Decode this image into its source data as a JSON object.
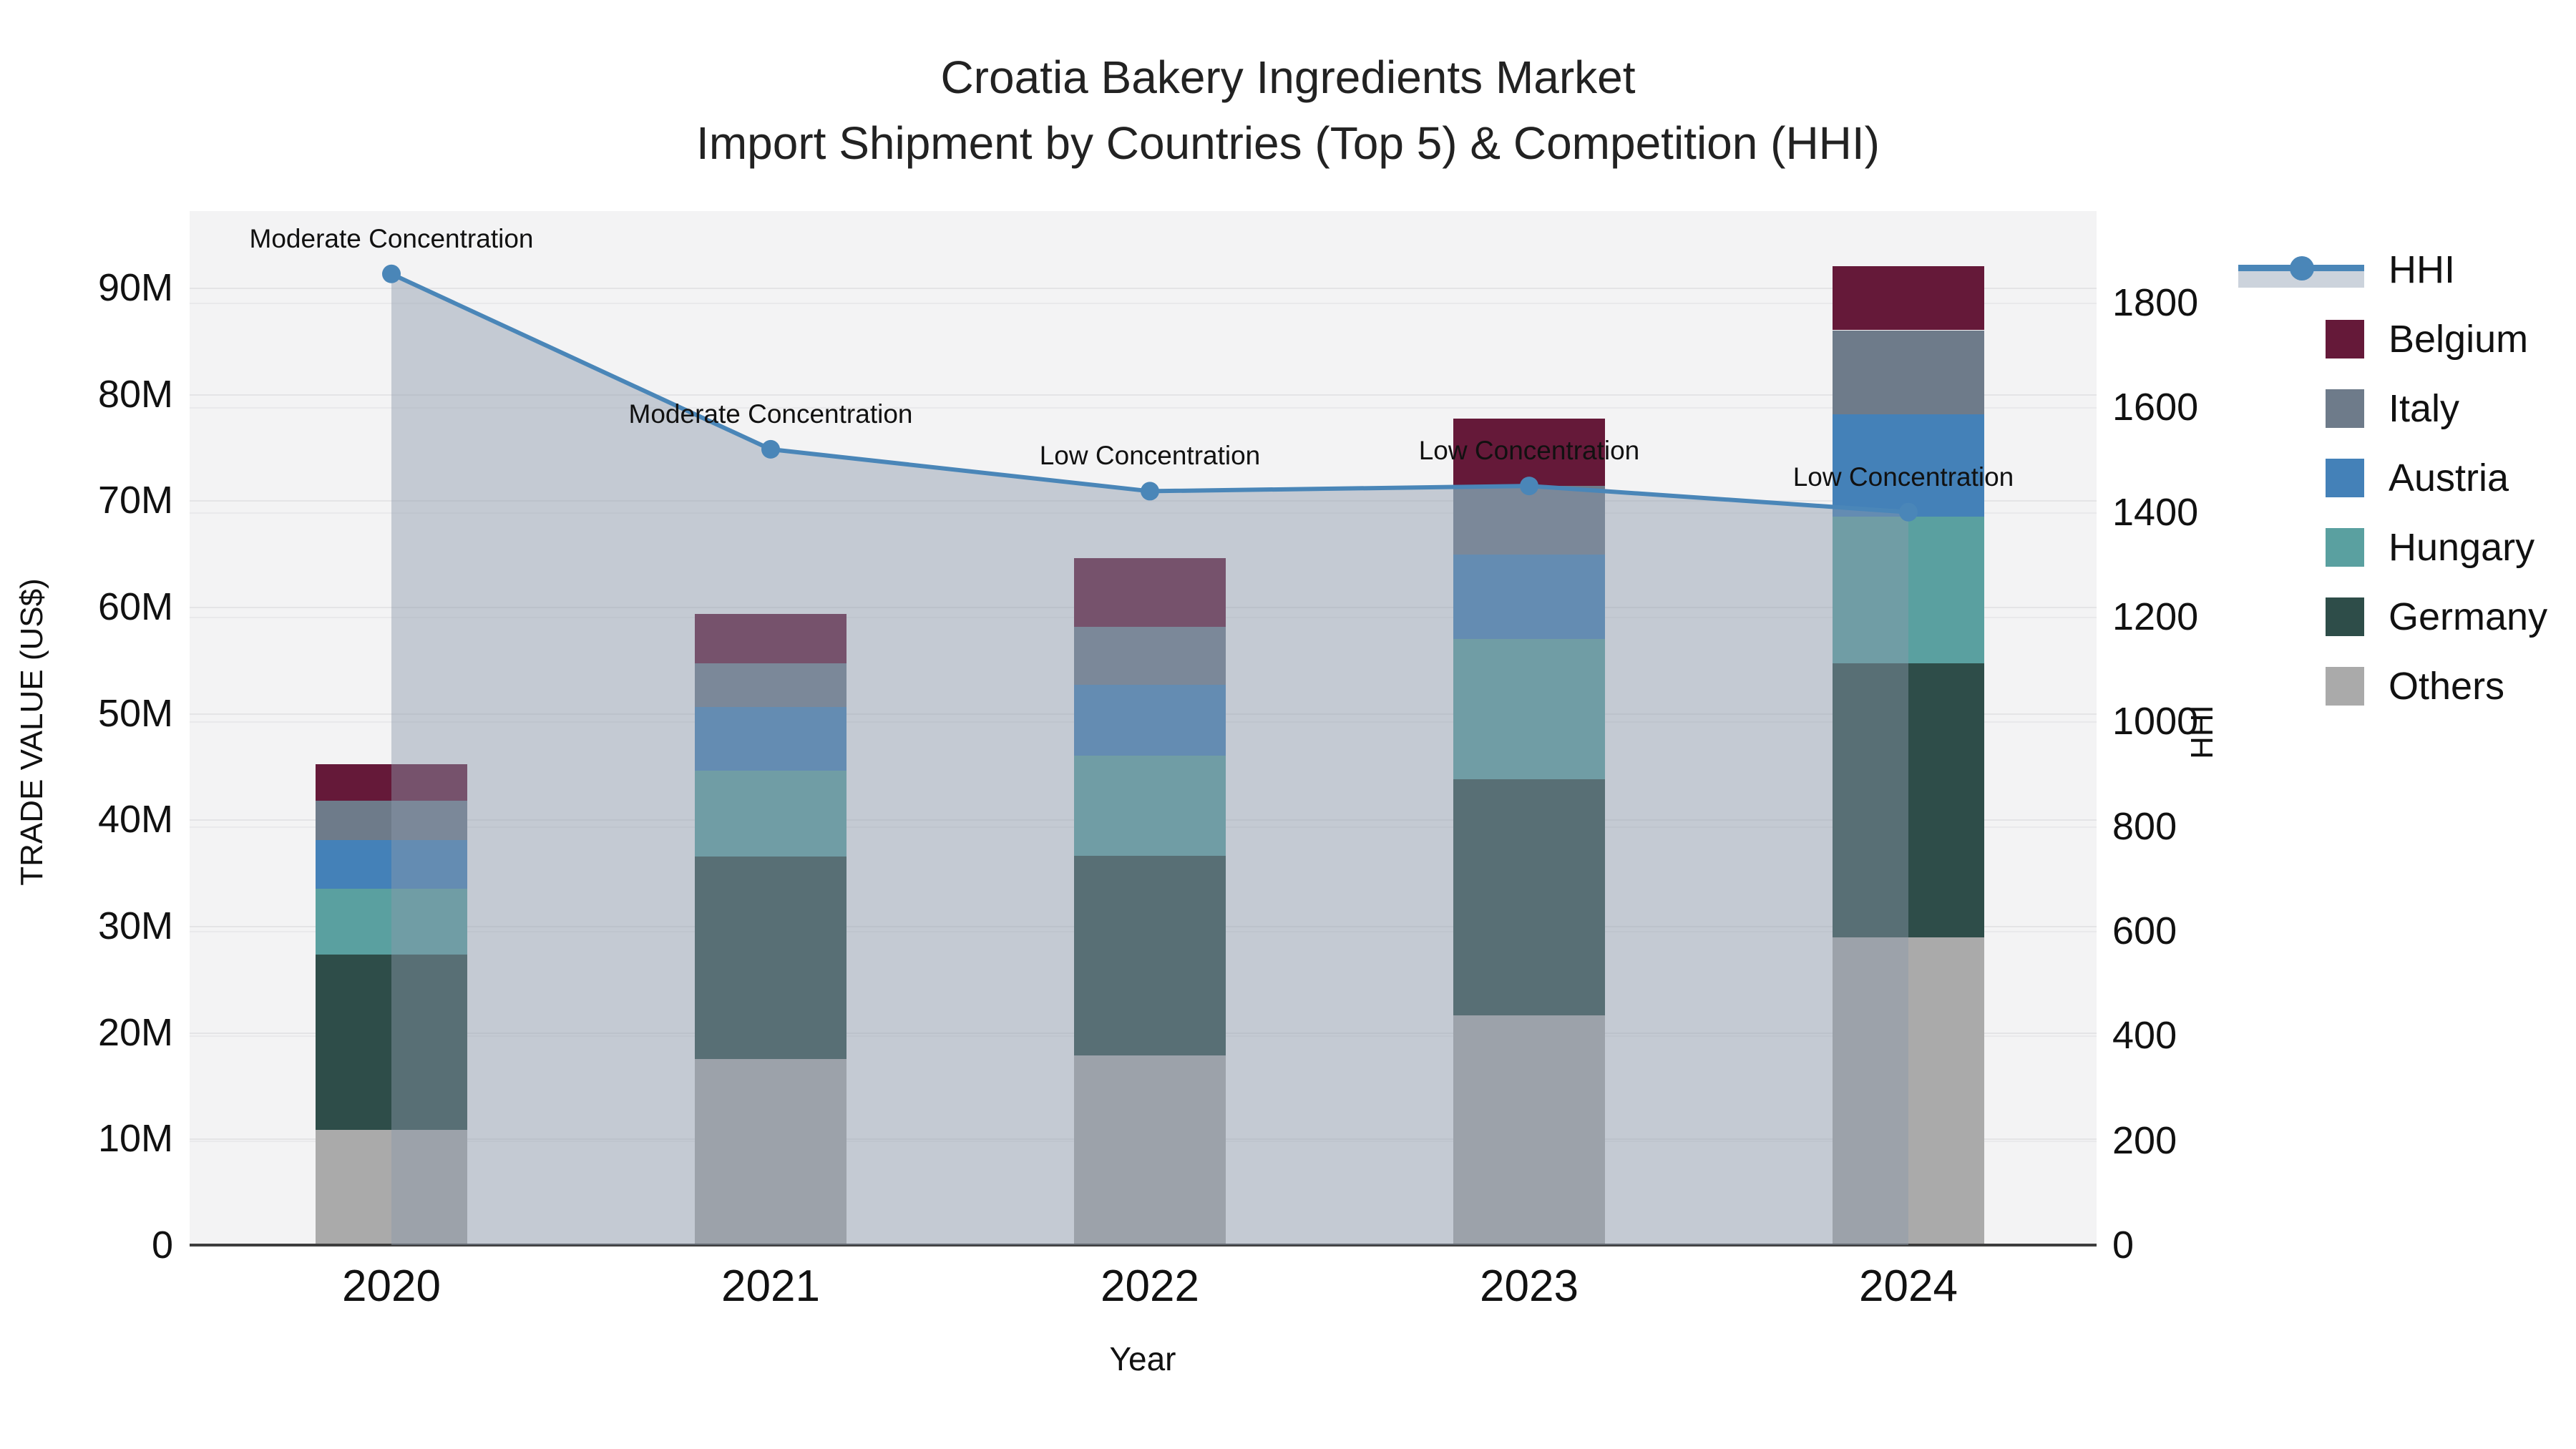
{
  "title": {
    "line1": "Croatia Bakery Ingredients Market",
    "line2": "Import Shipment by Countries (Top 5) & Competition (HHI)"
  },
  "axes": {
    "left": {
      "title": "TRADE VALUE (US$)",
      "tick_labels": [
        "0",
        "10M",
        "20M",
        "30M",
        "40M",
        "50M",
        "60M",
        "70M",
        "80M",
        "90M"
      ],
      "tick_values": [
        0,
        10,
        20,
        30,
        40,
        50,
        60,
        70,
        80,
        90
      ]
    },
    "right": {
      "title": "HHI",
      "tick_labels": [
        "0",
        "200",
        "400",
        "600",
        "800",
        "1000",
        "1200",
        "1400",
        "1600",
        "1800"
      ],
      "tick_values": [
        0,
        200,
        400,
        600,
        800,
        1000,
        1200,
        1400,
        1600,
        1800
      ]
    },
    "x": {
      "title": "Year"
    }
  },
  "legend": {
    "items": [
      {
        "label": "HHI",
        "type": "line",
        "color": "#4A86B8"
      },
      {
        "label": "Belgium",
        "type": "swatch",
        "color": "#651939"
      },
      {
        "label": "Italy",
        "type": "swatch",
        "color": "#6E7B8A"
      },
      {
        "label": "Austria",
        "type": "swatch",
        "color": "#4481B8"
      },
      {
        "label": "Hungary",
        "type": "swatch",
        "color": "#5AA0A0"
      },
      {
        "label": "Germany",
        "type": "swatch",
        "color": "#2E4D49"
      },
      {
        "label": "Others",
        "type": "swatch",
        "color": "#AAAAAA"
      }
    ]
  },
  "chart_data": {
    "type": "bar",
    "stacked": true,
    "title": "Croatia Bakery Ingredients Market — Import Shipment by Countries (Top 5) & Competition (HHI)",
    "xlabel": "Year",
    "ylabel": "TRADE VALUE (US$)",
    "ylabel_right": "HHI",
    "categories": [
      "2020",
      "2021",
      "2022",
      "2023",
      "2024"
    ],
    "series": [
      {
        "name": "Others",
        "color": "#AAAAAA",
        "values": [
          10.8,
          17.5,
          17.8,
          21.6,
          28.9
        ]
      },
      {
        "name": "Germany",
        "color": "#2E4D49",
        "values": [
          16.5,
          19.0,
          18.8,
          22.2,
          25.8
        ]
      },
      {
        "name": "Hungary",
        "color": "#5AA0A0",
        "values": [
          6.2,
          8.1,
          9.4,
          13.2,
          13.8
        ]
      },
      {
        "name": "Austria",
        "color": "#4481B8",
        "values": [
          4.6,
          6.0,
          6.7,
          7.9,
          9.6
        ]
      },
      {
        "name": "Italy",
        "color": "#6E7B8A",
        "values": [
          3.7,
          4.1,
          5.4,
          6.5,
          7.9
        ]
      },
      {
        "name": "Belgium",
        "color": "#651939",
        "values": [
          3.4,
          4.6,
          6.5,
          6.3,
          6.0
        ]
      }
    ],
    "bar_totals": [
      45.2,
      59.3,
      64.6,
      77.7,
      92.0
    ],
    "line_series": {
      "name": "HHI",
      "axis": "right",
      "color": "#4A86B8",
      "area_fill_color": "rgba(140,152,170,0.45)",
      "values": [
        1855,
        1520,
        1440,
        1450,
        1400
      ]
    },
    "annotations": [
      {
        "x": "2020",
        "text": "Moderate Concentration"
      },
      {
        "x": "2021",
        "text": "Moderate Concentration"
      },
      {
        "x": "2022",
        "text": "Low Concentration"
      },
      {
        "x": "2023",
        "text": "Low Concentration"
      },
      {
        "x": "2024",
        "text": "Low Concentration"
      }
    ],
    "ylim_left": [
      0,
      97.2
    ],
    "ylim_right": [
      0,
      1975
    ],
    "grid": true,
    "legend_position": "right"
  }
}
